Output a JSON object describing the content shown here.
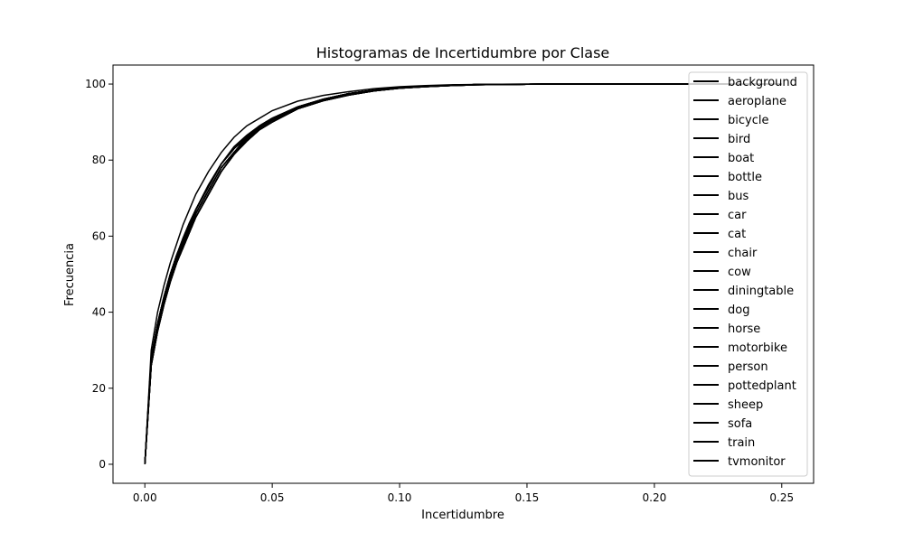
{
  "chart_data": {
    "type": "line",
    "title": "Histogramas de Incertidumbre por Clase",
    "xlabel": "Incertidumbre",
    "ylabel": "Frecuencia",
    "xlim": [
      -0.0125,
      0.2625
    ],
    "ylim": [
      -5,
      105
    ],
    "xticks": [
      0.0,
      0.05,
      0.1,
      0.15,
      0.2,
      0.25
    ],
    "xtick_labels": [
      "0.00",
      "0.05",
      "0.10",
      "0.15",
      "0.20",
      "0.25"
    ],
    "yticks": [
      0,
      20,
      40,
      60,
      80,
      100
    ],
    "ytick_labels": [
      "0",
      "20",
      "40",
      "60",
      "80",
      "100"
    ],
    "grid": false,
    "legend_position": "top-right",
    "line_color": "#000000",
    "x": [
      0.0,
      0.0025,
      0.005,
      0.0075,
      0.01,
      0.0125,
      0.015,
      0.0175,
      0.02,
      0.025,
      0.03,
      0.035,
      0.04,
      0.045,
      0.05,
      0.06,
      0.07,
      0.08,
      0.09,
      0.1,
      0.11,
      0.12,
      0.13,
      0.15,
      0.17,
      0.2,
      0.23,
      0.25
    ],
    "series": [
      {
        "name": "background",
        "values": [
          0,
          30,
          40,
          47,
          53,
          58,
          63,
          67,
          71,
          77,
          82,
          86,
          89,
          91,
          93,
          95.5,
          97,
          98,
          98.8,
          99.3,
          99.6,
          99.8,
          99.9,
          100,
          100,
          100,
          100,
          100
        ]
      },
      {
        "name": "aeroplane",
        "values": [
          0,
          28,
          37,
          44,
          50,
          55,
          59,
          63,
          67,
          73,
          79,
          83,
          86,
          89,
          91,
          94,
          96,
          97.5,
          98.4,
          99,
          99.4,
          99.7,
          99.85,
          99.95,
          100,
          100,
          100,
          100
        ]
      },
      {
        "name": "bicycle",
        "values": [
          0,
          27,
          36,
          43,
          49,
          54,
          58,
          62,
          66,
          72,
          78,
          82,
          86,
          88.5,
          90.5,
          93.8,
          95.8,
          97.3,
          98.3,
          99,
          99.4,
          99.7,
          99.85,
          99.95,
          100,
          100,
          100,
          100
        ]
      },
      {
        "name": "bird",
        "values": [
          0,
          28,
          37,
          44,
          50,
          55,
          59.5,
          63.5,
          67,
          73.5,
          79,
          83.5,
          86.5,
          89,
          91,
          94,
          96,
          97.5,
          98.4,
          99,
          99.4,
          99.7,
          99.85,
          99.95,
          100,
          100,
          100,
          100
        ]
      },
      {
        "name": "boat",
        "values": [
          0,
          27,
          36,
          43,
          49,
          54,
          58,
          62,
          66,
          72,
          78,
          82,
          85.5,
          88.5,
          90.5,
          93.8,
          95.8,
          97.3,
          98.3,
          99,
          99.4,
          99.7,
          99.85,
          99.95,
          100,
          100,
          100,
          100
        ]
      },
      {
        "name": "bottle",
        "values": [
          0,
          26,
          35,
          42,
          48,
          53,
          57,
          61,
          65,
          71,
          77,
          81.5,
          85,
          88,
          90,
          93.5,
          95.6,
          97.1,
          98.2,
          98.9,
          99.3,
          99.6,
          99.8,
          99.95,
          100,
          100,
          100,
          100
        ]
      },
      {
        "name": "bus",
        "values": [
          0,
          28,
          37,
          44,
          50,
          55,
          59,
          63,
          67,
          73,
          79,
          83,
          86,
          89,
          91,
          94,
          96,
          97.5,
          98.4,
          99,
          99.4,
          99.7,
          99.85,
          99.95,
          100,
          100,
          100,
          100
        ]
      },
      {
        "name": "car",
        "values": [
          0,
          27,
          36,
          43,
          49,
          54,
          58,
          62,
          66,
          72,
          78,
          82,
          85.5,
          88.5,
          90.5,
          93.8,
          95.8,
          97.3,
          98.3,
          99,
          99.4,
          99.7,
          99.85,
          99.95,
          100,
          100,
          100,
          100
        ]
      },
      {
        "name": "cat",
        "values": [
          0,
          28,
          37,
          44,
          50,
          55,
          59.5,
          63.5,
          67,
          73.5,
          79,
          83.5,
          86.5,
          89,
          91,
          94,
          96,
          97.5,
          98.4,
          99,
          99.4,
          99.7,
          99.85,
          99.95,
          100,
          100,
          100,
          100
        ]
      },
      {
        "name": "chair",
        "values": [
          0,
          26,
          35,
          42,
          48,
          53,
          57,
          61,
          65,
          71,
          77,
          81.5,
          85,
          88,
          90,
          93.5,
          95.6,
          97.1,
          98.2,
          98.9,
          99.3,
          99.6,
          99.8,
          99.95,
          100,
          100,
          100,
          100
        ]
      },
      {
        "name": "cow",
        "values": [
          0,
          27,
          36,
          43,
          49,
          54,
          58,
          62,
          66,
          72,
          78,
          82,
          85.5,
          88.5,
          90.5,
          93.8,
          95.8,
          97.3,
          98.3,
          99,
          99.4,
          99.7,
          99.85,
          99.95,
          100,
          100,
          100,
          100
        ]
      },
      {
        "name": "diningtable",
        "values": [
          0,
          26,
          35,
          42,
          48,
          53,
          57,
          61,
          65,
          71,
          77,
          81.5,
          85,
          88,
          90,
          93.5,
          95.6,
          97.1,
          98.2,
          98.9,
          99.3,
          99.6,
          99.8,
          99.95,
          100,
          100,
          100,
          100
        ]
      },
      {
        "name": "dog",
        "values": [
          0,
          28,
          37,
          44,
          50,
          55,
          59,
          63,
          67,
          73,
          79,
          83,
          86,
          89,
          91,
          94,
          96,
          97.5,
          98.4,
          99,
          99.4,
          99.7,
          99.85,
          99.95,
          100,
          100,
          100,
          100
        ]
      },
      {
        "name": "horse",
        "values": [
          0,
          27,
          36,
          43,
          49,
          54,
          58,
          62,
          66,
          72,
          78,
          82,
          85.5,
          88.5,
          90.5,
          93.8,
          95.8,
          97.3,
          98.3,
          99,
          99.4,
          99.7,
          99.85,
          99.95,
          100,
          100,
          100,
          100
        ]
      },
      {
        "name": "motorbike",
        "values": [
          0,
          27,
          36,
          43,
          49,
          54,
          58,
          62,
          66,
          72,
          78,
          82,
          86,
          88.5,
          90.5,
          93.8,
          95.8,
          97.3,
          98.3,
          99,
          99.4,
          99.7,
          99.85,
          99.95,
          100,
          100,
          100,
          100
        ]
      },
      {
        "name": "person",
        "values": [
          0,
          26,
          35,
          42,
          48,
          53,
          57,
          61,
          65,
          71,
          77,
          81.5,
          85,
          88,
          90,
          93.5,
          95.6,
          97.1,
          98.2,
          98.9,
          99.3,
          99.6,
          99.8,
          99.95,
          100,
          100,
          100,
          100
        ]
      },
      {
        "name": "pottedplant",
        "values": [
          0,
          26,
          35,
          42,
          48,
          53,
          57,
          61,
          65,
          71,
          77,
          81.5,
          85,
          88,
          90,
          93.5,
          95.6,
          97.1,
          98.2,
          98.9,
          99.3,
          99.6,
          99.8,
          99.95,
          100,
          100,
          100,
          100
        ]
      },
      {
        "name": "sheep",
        "values": [
          0,
          27,
          36,
          43,
          49,
          54,
          58,
          62,
          66,
          72,
          78,
          82,
          85.5,
          88.5,
          90.5,
          93.8,
          95.8,
          97.3,
          98.3,
          99,
          99.4,
          99.7,
          99.85,
          99.95,
          100,
          100,
          100,
          100
        ]
      },
      {
        "name": "sofa",
        "values": [
          0,
          26,
          35,
          42,
          48,
          53,
          57,
          61,
          65,
          71,
          77,
          81.5,
          85,
          88,
          90,
          93.5,
          95.6,
          97.1,
          98.2,
          98.9,
          99.3,
          99.6,
          99.8,
          99.95,
          100,
          100,
          100,
          100
        ]
      },
      {
        "name": "train",
        "values": [
          0,
          28,
          37,
          44,
          50,
          55,
          59,
          63,
          67,
          73,
          79,
          83,
          86,
          89,
          91,
          94,
          96,
          97.5,
          98.4,
          99,
          99.4,
          99.7,
          99.85,
          99.95,
          100,
          100,
          100,
          100
        ]
      },
      {
        "name": "tvmonitor",
        "values": [
          0,
          27,
          36,
          43,
          49,
          54,
          58,
          62,
          66,
          72,
          78,
          82,
          85.5,
          88.5,
          90.5,
          93.8,
          95.8,
          97.3,
          98.3,
          99,
          99.4,
          99.7,
          99.85,
          99.95,
          100,
          100,
          100,
          100
        ]
      }
    ]
  }
}
